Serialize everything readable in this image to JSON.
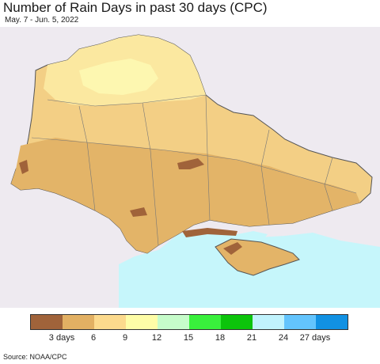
{
  "title": "Number of Rain Days in past 30 days (CPC)",
  "date_range": "May. 7 - Jun. 5, 2022",
  "source": "Source: NOAA/CPC",
  "colors": {
    "background_land": "#eeeaf0",
    "sea": "#c6f6fb",
    "border": "#555555"
  },
  "legend": {
    "colors": [
      "#a0633a",
      "#e2b063",
      "#fcda8d",
      "#fefda7",
      "#c6fcca",
      "#39f03c",
      "#0cc40b",
      "#c1f3fd",
      "#63c4fd",
      "#1191e3"
    ],
    "labels": [
      "3 days",
      "6",
      "9",
      "12",
      "15",
      "18",
      "21",
      "24",
      "27 days"
    ]
  }
}
